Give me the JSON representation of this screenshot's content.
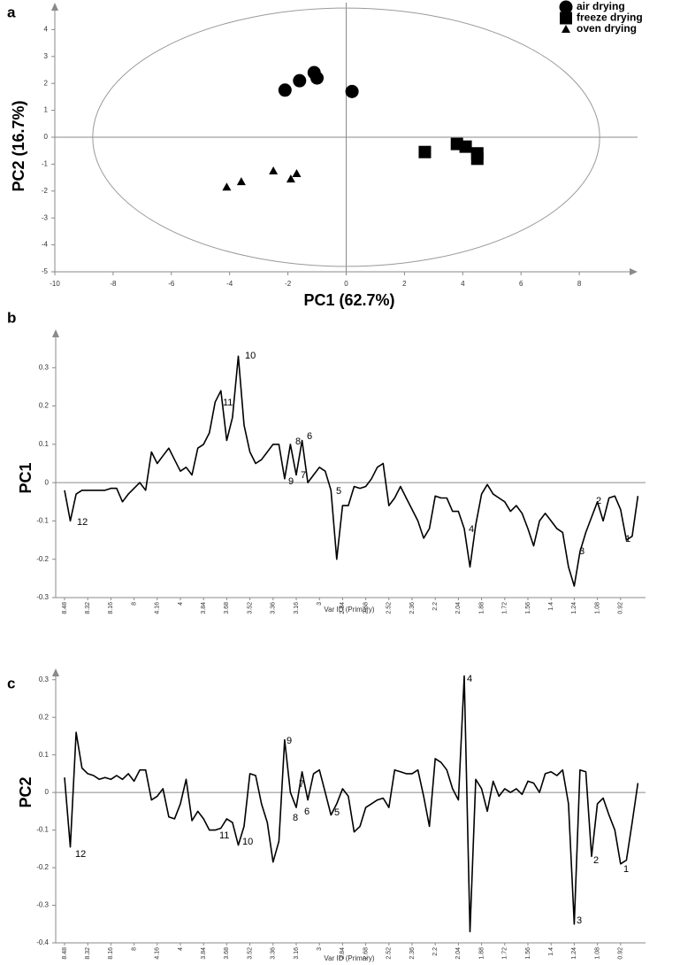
{
  "chart_data": [
    {
      "type": "scatter",
      "label": "a",
      "xlabel": "PC1 (62.7%)",
      "ylabel": "PC2 (16.7%)",
      "xlim": [
        -10,
        10
      ],
      "ylim": [
        -5,
        5
      ],
      "xticks": [
        -10,
        -8,
        -6,
        -4,
        -2,
        0,
        2,
        4,
        6,
        8
      ],
      "yticks": [
        -5,
        -4,
        -3,
        -2,
        -1,
        0,
        1,
        2,
        3,
        4
      ],
      "ellipse": {
        "rx": 8.7,
        "ry": 4.8
      },
      "legend": "top-right",
      "series": [
        {
          "name": "air drying",
          "marker": "circle",
          "color": "#000000",
          "x": [
            -2.1,
            -1.6,
            -1.1,
            -1.0,
            0.2
          ],
          "values": [
            1.75,
            2.1,
            2.4,
            2.2,
            1.7
          ]
        },
        {
          "name": "freeze drying",
          "marker": "square",
          "color": "#000000",
          "x": [
            2.7,
            3.8,
            4.1,
            4.5,
            4.5
          ],
          "values": [
            -0.55,
            -0.25,
            -0.35,
            -0.6,
            -0.8
          ]
        },
        {
          "name": "oven drying",
          "marker": "triangle",
          "color": "#000000",
          "x": [
            -4.1,
            -3.6,
            -2.5,
            -1.9,
            -1.7
          ],
          "values": [
            -1.85,
            -1.65,
            -1.25,
            -1.55,
            -1.35
          ]
        }
      ]
    },
    {
      "type": "line",
      "label": "b",
      "xlabel": "Var ID (Primary)",
      "ylabel": "PC1",
      "color": "#000000",
      "ylim": [
        -0.3,
        0.4
      ],
      "yticks": [
        -0.3,
        -0.2,
        -0.1,
        0,
        0.1,
        0.2,
        0.3
      ],
      "categories": [
        "8.48",
        null,
        null,
        null,
        "8.32",
        null,
        null,
        null,
        "8.16",
        null,
        null,
        null,
        "8",
        null,
        null,
        null,
        "4.16",
        null,
        null,
        null,
        "4",
        null,
        null,
        null,
        "3.84",
        null,
        null,
        null,
        "3.68",
        null,
        null,
        null,
        "3.52",
        null,
        null,
        null,
        "3.36",
        null,
        null,
        null,
        "3.16",
        null,
        null,
        null,
        "3",
        null,
        null,
        null,
        "2.84",
        null,
        null,
        null,
        "2.68",
        null,
        null,
        null,
        "2.52",
        null,
        null,
        null,
        "2.36",
        null,
        null,
        null,
        "2.2",
        null,
        null,
        null,
        "2.04",
        null,
        null,
        null,
        "1.88",
        null,
        null,
        null,
        "1.72",
        null,
        null,
        null,
        "1.56",
        null,
        null,
        null,
        "1.4",
        null,
        null,
        null,
        "1.24",
        null,
        null,
        null,
        "1.08",
        null,
        null,
        null,
        "0.92",
        null,
        null,
        null
      ],
      "values": [
        -0.02,
        -0.1,
        -0.03,
        -0.02,
        -0.02,
        -0.02,
        -0.02,
        -0.02,
        -0.015,
        -0.015,
        -0.05,
        -0.03,
        -0.015,
        0,
        -0.02,
        0.08,
        0.05,
        0.07,
        0.09,
        0.06,
        0.03,
        0.04,
        0.02,
        0.09,
        0.1,
        0.13,
        0.21,
        0.24,
        0.11,
        0.17,
        0.33,
        0.15,
        0.08,
        0.05,
        0.06,
        0.08,
        0.1,
        0.1,
        0.01,
        0.1,
        0.02,
        0.11,
        0,
        0.02,
        0.04,
        0.03,
        -0.02,
        -0.2,
        -0.06,
        -0.06,
        -0.01,
        -0.015,
        -0.01,
        0.01,
        0.04,
        0.05,
        -0.06,
        -0.04,
        -0.01,
        -0.04,
        -0.07,
        -0.1,
        -0.145,
        -0.12,
        -0.035,
        -0.04,
        -0.04,
        -0.075,
        -0.075,
        -0.12,
        -0.22,
        -0.11,
        -0.03,
        -0.005,
        -0.03,
        -0.04,
        -0.05,
        -0.075,
        -0.06,
        -0.08,
        -0.12,
        -0.165,
        -0.1,
        -0.08,
        -0.1,
        -0.12,
        -0.13,
        -0.22,
        -0.27,
        -0.18,
        -0.13,
        -0.09,
        -0.05,
        -0.1,
        -0.04,
        -0.035,
        -0.07,
        -0.15,
        -0.14,
        -0.035
      ],
      "annotations": [
        "10",
        "11",
        "8",
        "6",
        "9",
        "7",
        "5",
        "12",
        "4",
        "3",
        "2",
        "1"
      ]
    },
    {
      "type": "line",
      "label": "c",
      "xlabel": "Var ID (Primary)",
      "ylabel": "PC2",
      "color": "#000000",
      "ylim": [
        -0.4,
        0.33
      ],
      "yticks": [
        -0.4,
        -0.3,
        -0.2,
        -0.1,
        0,
        0.1,
        0.2,
        0.3
      ],
      "categories": [
        "8.48",
        null,
        null,
        null,
        "8.32",
        null,
        null,
        null,
        "8.16",
        null,
        null,
        null,
        "8",
        null,
        null,
        null,
        "4.16",
        null,
        null,
        null,
        "4",
        null,
        null,
        null,
        "3.84",
        null,
        null,
        null,
        "3.68",
        null,
        null,
        null,
        "3.52",
        null,
        null,
        null,
        "3.36",
        null,
        null,
        null,
        "3.16",
        null,
        null,
        null,
        "3",
        null,
        null,
        null,
        "2.84",
        null,
        null,
        null,
        "2.68",
        null,
        null,
        null,
        "2.52",
        null,
        null,
        null,
        "2.36",
        null,
        null,
        null,
        "2.2",
        null,
        null,
        null,
        "2.04",
        null,
        null,
        null,
        "1.88",
        null,
        null,
        null,
        "1.72",
        null,
        null,
        null,
        "1.56",
        null,
        null,
        null,
        "1.4",
        null,
        null,
        null,
        "1.24",
        null,
        null,
        null,
        "1.08",
        null,
        null,
        null,
        "0.92",
        null,
        null,
        null
      ],
      "values": [
        0.04,
        -0.145,
        0.16,
        0.065,
        0.05,
        0.045,
        0.035,
        0.04,
        0.035,
        0.045,
        0.035,
        0.05,
        0.03,
        0.06,
        0.06,
        -0.02,
        -0.01,
        0.01,
        -0.065,
        -0.07,
        -0.03,
        0.035,
        -0.075,
        -0.05,
        -0.07,
        -0.1,
        -0.1,
        -0.095,
        -0.07,
        -0.08,
        -0.14,
        -0.09,
        0.05,
        0.045,
        -0.03,
        -0.08,
        -0.185,
        -0.13,
        0.14,
        0,
        -0.04,
        0.055,
        -0.02,
        0.05,
        0.06,
        0,
        -0.06,
        -0.03,
        0.01,
        -0.01,
        -0.105,
        -0.09,
        -0.04,
        -0.03,
        -0.02,
        -0.015,
        -0.04,
        0.06,
        0.055,
        0.05,
        0.05,
        0.06,
        -0.01,
        -0.09,
        0.09,
        0.08,
        0.06,
        0.01,
        -0.02,
        0.31,
        -0.37,
        0.035,
        0.01,
        -0.05,
        0.03,
        -0.01,
        0.01,
        0,
        0.01,
        -0.005,
        0.03,
        0.025,
        0,
        0.05,
        0.055,
        0.045,
        0.06,
        -0.03,
        -0.35,
        0.06,
        0.055,
        -0.17,
        -0.03,
        -0.015,
        -0.06,
        -0.1,
        -0.19,
        -0.18,
        -0.08,
        0.025
      ],
      "annotations": [
        "4",
        "9",
        "7",
        "8",
        "6",
        "5",
        "11",
        "10",
        "12",
        "3",
        "2",
        "1"
      ]
    }
  ]
}
